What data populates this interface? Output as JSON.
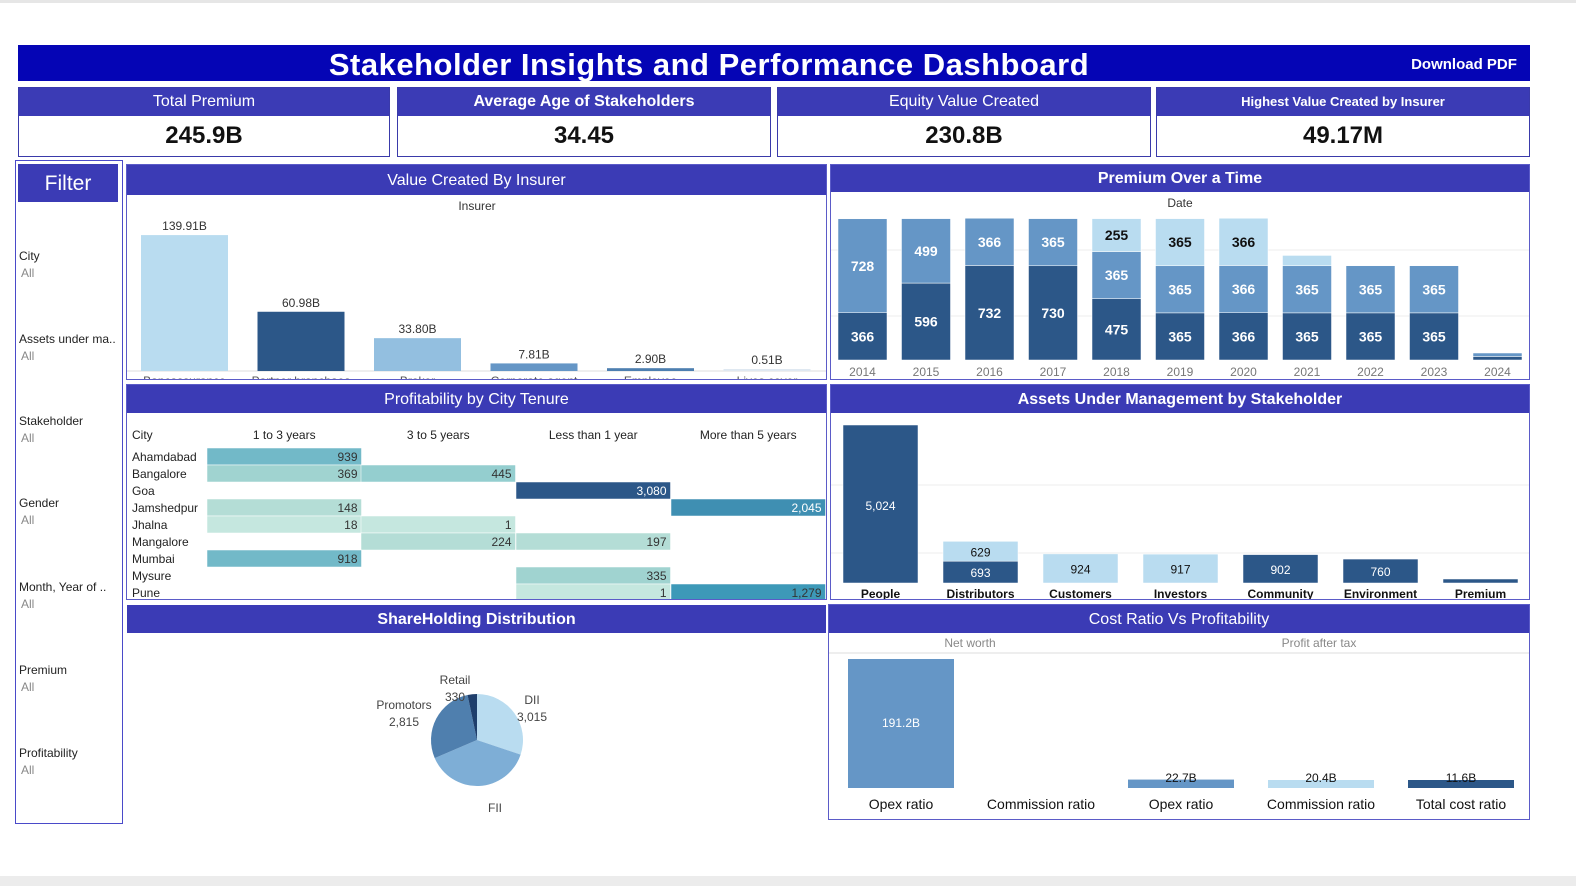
{
  "header": {
    "title": "Stakeholder Insights and Performance Dashboard",
    "download_label": "Download PDF"
  },
  "kpis": [
    {
      "label": "Total Premium",
      "value": "245.9B"
    },
    {
      "label": "Average Age of Stakeholders",
      "value": "34.45"
    },
    {
      "label": "Equity Value  Created",
      "value": "230.8B"
    },
    {
      "label": "Highest Value Created by Insurer",
      "value": "49.17M"
    }
  ],
  "filter": {
    "title": "Filter",
    "items": [
      {
        "label": "City",
        "value": "All"
      },
      {
        "label": "Assets under ma..",
        "value": "All"
      },
      {
        "label": "Stakeholder",
        "value": "All"
      },
      {
        "label": "Gender",
        "value": "All"
      },
      {
        "label": "Month, Year of ..",
        "value": "All"
      },
      {
        "label": "Premium",
        "value": "All"
      },
      {
        "label": "Profitability",
        "value": "All"
      }
    ]
  },
  "colors": {
    "title_bar": "#0505b5",
    "panel_header": "#3b3bb5",
    "light_blue": "#b9dcf0",
    "mid_blue": "#6596c6",
    "dark_blue": "#2c5788",
    "teal": "#3f8fb2"
  },
  "panels": {
    "value_created": "Value Created By Insurer",
    "premium_time": "Premium Over a Time",
    "profitability_city": "Profitability by City Tenure",
    "aum": "Assets Under Management by Stakeholder",
    "shareholding": "ShareHolding Distribution",
    "cost_ratio": "Cost Ratio  Vs Profitability"
  },
  "chart_data": [
    {
      "id": "value_created",
      "type": "bar",
      "title": "Value Created By Insurer",
      "xlabel": "Insurer",
      "categories": [
        "Bancassurance partners",
        "Partner branchaes",
        "Broker",
        "Corporate agent",
        "Employee",
        "Lives cover"
      ],
      "values": [
        139.91,
        60.98,
        33.8,
        7.81,
        2.9,
        0.51
      ],
      "labels": [
        "139.91B",
        "60.98B",
        "33.80B",
        "7.81B",
        "2.90B",
        "0.51B"
      ],
      "colors": [
        "#b9dcf0",
        "#2c5788",
        "#93bfe0",
        "#6596c6",
        "#4d7fb0",
        "#dfe8f1"
      ],
      "ylim": [
        0,
        140
      ]
    },
    {
      "id": "premium_time",
      "type": "bar",
      "stacked": true,
      "title": "Premium Over a Time",
      "xlabel": "Date",
      "categories": [
        "2014",
        "2015",
        "2016",
        "2017",
        "2018",
        "2019",
        "2020",
        "2021",
        "2022",
        "2023",
        "2024"
      ],
      "series": [
        {
          "values": [
            366,
            596,
            732,
            730,
            475,
            365,
            366,
            365,
            365,
            365,
            20
          ],
          "color": "#2c5788"
        },
        {
          "values": [
            728,
            499,
            366,
            365,
            365,
            365,
            366,
            365,
            365,
            365,
            20
          ],
          "color": "#6596c6"
        },
        {
          "values": [
            0,
            0,
            0,
            0,
            255,
            365,
            366,
            80,
            0,
            0,
            0
          ],
          "color": "#b9dcf0"
        }
      ],
      "ylim": [
        0,
        1100
      ]
    },
    {
      "id": "profitability_city",
      "type": "table",
      "title": "Profitability by City Tenure",
      "row_header": "City",
      "columns": [
        "1 to 3 years",
        "3 to 5 years",
        "Less than 1 year",
        "More than 5 years"
      ],
      "rows": [
        {
          "city": "Ahamdabad",
          "values": [
            939,
            null,
            null,
            null
          ]
        },
        {
          "city": "Bangalore",
          "values": [
            369,
            445,
            null,
            null
          ]
        },
        {
          "city": "Goa",
          "values": [
            null,
            null,
            3080,
            null
          ]
        },
        {
          "city": "Jamshedpur",
          "values": [
            148,
            null,
            null,
            2045
          ]
        },
        {
          "city": "Jhalna",
          "values": [
            18,
            1,
            null,
            null
          ]
        },
        {
          "city": "Mangalore",
          "values": [
            null,
            224,
            197,
            null
          ]
        },
        {
          "city": "Mumbai",
          "values": [
            918,
            null,
            null,
            null
          ]
        },
        {
          "city": "Mysure",
          "values": [
            null,
            null,
            335,
            null
          ]
        },
        {
          "city": "Pune",
          "values": [
            null,
            null,
            1,
            1279
          ]
        }
      ],
      "labels": [
        [
          "939",
          null,
          null,
          null
        ],
        [
          "369",
          "445",
          null,
          null
        ],
        [
          null,
          null,
          "3,080",
          null
        ],
        [
          "148",
          null,
          null,
          "2,045"
        ],
        [
          "18",
          "1",
          null,
          null
        ],
        [
          null,
          "224",
          "197",
          null
        ],
        [
          "918",
          null,
          null,
          null
        ],
        [
          null,
          null,
          "335",
          null
        ],
        [
          null,
          null,
          "1",
          "1,279"
        ]
      ]
    },
    {
      "id": "aum",
      "type": "bar",
      "stacked": true,
      "title": "Assets Under Management by Stakeholder",
      "categories": [
        "People",
        "Distributors",
        "Customers",
        "Investors",
        "Community",
        "Environment",
        "Premium"
      ],
      "series": [
        {
          "values": [
            5024,
            693,
            0,
            0,
            902,
            760,
            120
          ],
          "color": "#2c5788"
        },
        {
          "values": [
            0,
            629,
            924,
            917,
            0,
            0,
            0
          ],
          "color": "#b9dcf0"
        }
      ],
      "labels": [
        [
          "5,024",
          "693",
          null,
          null,
          "902",
          "760",
          null
        ],
        [
          null,
          "629",
          "924",
          "917",
          null,
          null,
          null
        ]
      ],
      "ylim": [
        0,
        5100
      ]
    },
    {
      "id": "shareholding",
      "type": "pie",
      "title": "ShareHolding Distribution",
      "slices": [
        {
          "name": "DII",
          "value": 3015,
          "label": "3,015",
          "color": "#b9dcf0"
        },
        {
          "name": "FII",
          "value": 3839,
          "label": "3,839",
          "color": "#7eaed6"
        },
        {
          "name": "Promotors",
          "value": 2815,
          "label": "2,815",
          "color": "#4f7fae"
        },
        {
          "name": "Retail",
          "value": 330,
          "label": "330",
          "color": "#1f3f6c"
        }
      ]
    },
    {
      "id": "cost_ratio",
      "type": "bar",
      "title": "Cost Ratio  Vs Profitability",
      "groups": [
        {
          "name": "Net worth",
          "categories": [
            "Opex ratio",
            "Commission ratio"
          ],
          "values": [
            191.2,
            0.0
          ],
          "labels": [
            "191.2B",
            "0.0B"
          ]
        },
        {
          "name": "Profit after tax",
          "categories": [
            "Opex ratio",
            "Commission ratio",
            "Total cost ratio"
          ],
          "values": [
            22.7,
            20.4,
            11.6
          ],
          "labels": [
            "22.7B",
            "20.4B",
            "11.6B"
          ]
        }
      ],
      "colors": [
        "#6596c6",
        "#b9dcf0",
        "#2c5788"
      ],
      "ylim": [
        0,
        200
      ]
    }
  ]
}
